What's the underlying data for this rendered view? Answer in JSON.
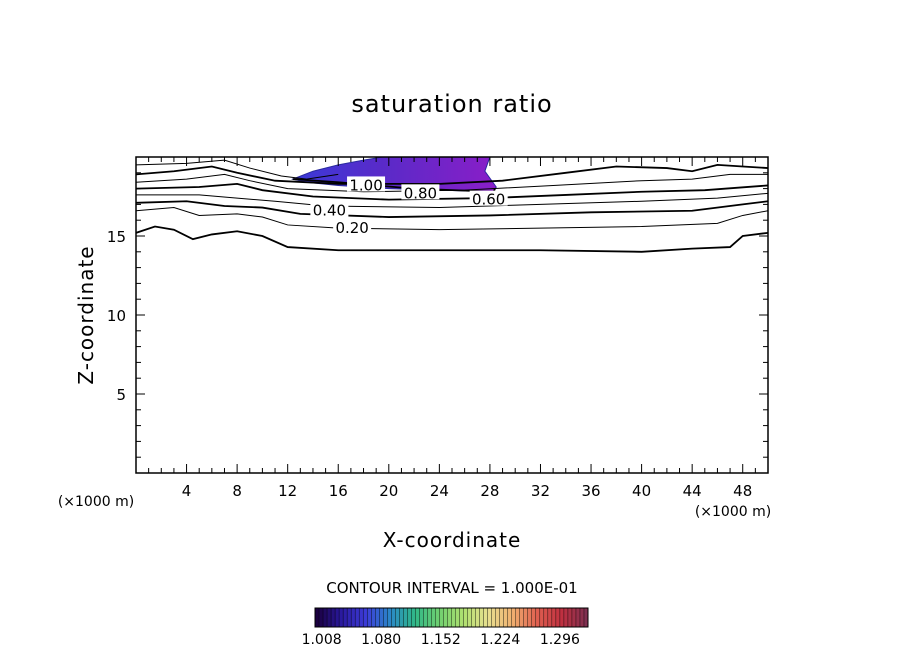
{
  "chart_data": {
    "type": "contour",
    "title": "saturation ratio",
    "xlabel": "X-coordinate",
    "ylabel": "Z-coordinate",
    "x_unit_left": "(×1000 m)",
    "x_unit_right": "(×1000 m)",
    "xlim": [
      0,
      50
    ],
    "ylim": [
      0,
      20
    ],
    "x_ticks": [
      4,
      8,
      12,
      16,
      20,
      24,
      28,
      32,
      36,
      40,
      44,
      48
    ],
    "y_ticks": [
      5,
      10,
      15
    ],
    "contour_interval_text": "CONTOUR INTERVAL = 1.000E-01",
    "contour_labels": [
      {
        "text": "1.00",
        "x": 18.2,
        "z": 18.2
      },
      {
        "text": "0.80",
        "x": 22.5,
        "z": 17.7
      },
      {
        "text": "0.60",
        "x": 27.9,
        "z": 17.3
      },
      {
        "text": "0.40",
        "x": 15.3,
        "z": 16.6
      },
      {
        "text": "0.20",
        "x": 17.1,
        "z": 15.5
      }
    ],
    "contours": [
      {
        "level": 0.2,
        "points": [
          [
            0,
            15.2
          ],
          [
            1.5,
            15.6
          ],
          [
            3,
            15.4
          ],
          [
            4.5,
            14.8
          ],
          [
            6,
            15.1
          ],
          [
            8,
            15.3
          ],
          [
            10,
            15.0
          ],
          [
            12,
            14.3
          ],
          [
            16,
            14.1
          ],
          [
            24,
            14.1
          ],
          [
            32,
            14.1
          ],
          [
            40,
            14.0
          ],
          [
            44,
            14.2
          ],
          [
            47,
            14.3
          ],
          [
            48,
            15.0
          ],
          [
            50,
            15.2
          ]
        ]
      },
      {
        "level": 0.3,
        "points": [
          [
            0,
            16.6
          ],
          [
            3,
            16.8
          ],
          [
            5,
            16.3
          ],
          [
            8,
            16.4
          ],
          [
            10,
            16.2
          ],
          [
            12,
            15.7
          ],
          [
            16,
            15.5
          ],
          [
            24,
            15.4
          ],
          [
            32,
            15.5
          ],
          [
            40,
            15.6
          ],
          [
            46,
            15.8
          ],
          [
            48,
            16.3
          ],
          [
            50,
            16.6
          ]
        ]
      },
      {
        "level": 0.4,
        "points": [
          [
            0,
            17.1
          ],
          [
            4,
            17.2
          ],
          [
            7,
            16.9
          ],
          [
            10,
            16.8
          ],
          [
            13,
            16.4
          ],
          [
            20,
            16.2
          ],
          [
            28,
            16.3
          ],
          [
            36,
            16.5
          ],
          [
            44,
            16.6
          ],
          [
            48,
            17.0
          ],
          [
            50,
            17.2
          ]
        ]
      },
      {
        "level": 0.5,
        "points": [
          [
            0,
            17.6
          ],
          [
            5,
            17.6
          ],
          [
            8,
            17.4
          ],
          [
            11,
            17.2
          ],
          [
            15,
            16.9
          ],
          [
            24,
            16.8
          ],
          [
            32,
            17.0
          ],
          [
            40,
            17.2
          ],
          [
            46,
            17.4
          ],
          [
            50,
            17.7
          ]
        ]
      },
      {
        "level": 0.6,
        "points": [
          [
            0,
            18.0
          ],
          [
            5,
            18.1
          ],
          [
            8,
            18.3
          ],
          [
            10,
            17.9
          ],
          [
            14,
            17.5
          ],
          [
            20,
            17.3
          ],
          [
            28,
            17.4
          ],
          [
            34,
            17.6
          ],
          [
            40,
            17.8
          ],
          [
            45,
            17.9
          ],
          [
            50,
            18.2
          ]
        ]
      },
      {
        "level": 0.7,
        "points": [
          [
            0,
            18.4
          ],
          [
            4,
            18.6
          ],
          [
            7,
            18.9
          ],
          [
            9,
            18.5
          ],
          [
            12,
            18.0
          ],
          [
            18,
            17.8
          ],
          [
            26,
            17.9
          ],
          [
            33,
            18.2
          ],
          [
            40,
            18.5
          ],
          [
            44,
            18.6
          ],
          [
            47,
            18.9
          ],
          [
            50,
            18.9
          ]
        ]
      },
      {
        "level": 0.8,
        "points": [
          [
            0,
            18.9
          ],
          [
            3,
            19.1
          ],
          [
            6,
            19.4
          ],
          [
            8,
            19.0
          ],
          [
            11,
            18.5
          ],
          [
            16,
            18.3
          ],
          [
            24,
            18.3
          ],
          [
            29,
            18.5
          ],
          [
            34,
            19.0
          ],
          [
            38,
            19.4
          ],
          [
            42,
            19.3
          ],
          [
            44,
            19.1
          ],
          [
            46,
            19.5
          ],
          [
            48,
            19.4
          ],
          [
            50,
            19.3
          ]
        ]
      },
      {
        "level": 0.9,
        "points": [
          [
            0,
            19.5
          ],
          [
            4,
            19.6
          ],
          [
            7,
            19.8
          ],
          [
            9,
            19.3
          ],
          [
            11.5,
            18.8
          ],
          [
            13.5,
            18.6
          ],
          [
            16,
            18.9
          ]
        ]
      },
      {
        "level": 1.0,
        "points": [
          [
            12.4,
            18.6
          ],
          [
            16,
            18.4
          ],
          [
            22,
            18.0
          ],
          [
            28.3,
            17.8
          ],
          [
            28.4,
            18.0
          ]
        ]
      }
    ],
    "filled_region": {
      "label": "saturation ratio above 1.0",
      "points": [
        [
          12.4,
          18.6
        ],
        [
          14,
          19.1
        ],
        [
          16,
          19.5
        ],
        [
          18,
          19.8
        ],
        [
          19.5,
          20.0
        ],
        [
          28,
          20.0
        ],
        [
          27.6,
          19.1
        ],
        [
          28.5,
          18.1
        ],
        [
          28.3,
          17.8
        ],
        [
          24,
          17.9
        ],
        [
          20,
          18.0
        ],
        [
          16,
          18.2
        ],
        [
          13.5,
          18.4
        ]
      ]
    },
    "colorbar": {
      "tick_labels": [
        "1.008",
        "1.080",
        "1.152",
        "1.224",
        "1.296"
      ],
      "min": 1.0,
      "max": 1.33,
      "colors": [
        "#1a0040",
        "#2a1aa0",
        "#3c3cd8",
        "#2a88c8",
        "#30b888",
        "#70d070",
        "#b0e070",
        "#e8e090",
        "#f0b070",
        "#e06050",
        "#c03040",
        "#803050"
      ]
    },
    "grid": false,
    "legend": "colorbar-bottom"
  }
}
